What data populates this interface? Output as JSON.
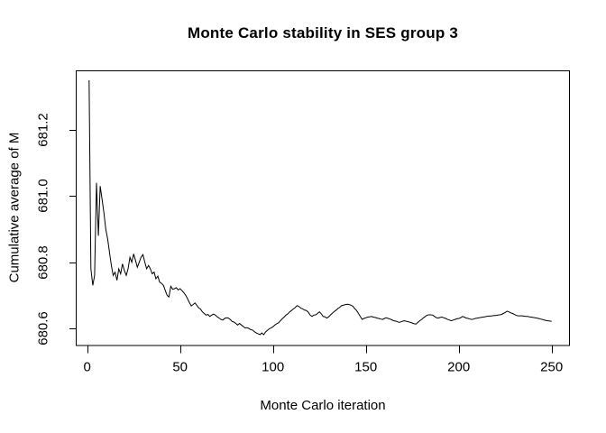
{
  "chart_data": {
    "type": "line",
    "title": "Monte Carlo stability in SES group 3",
    "xlabel": "Monte Carlo iteration",
    "ylabel": "Cumulative average of M",
    "line_color": "#000000",
    "background_color": "#ffffff",
    "grid": false,
    "legend": false,
    "box_around_plot": true,
    "x_ticks": [
      {
        "value": 0,
        "label": "0"
      },
      {
        "value": 50,
        "label": "50"
      },
      {
        "value": 100,
        "label": "100"
      },
      {
        "value": 150,
        "label": "150"
      },
      {
        "value": 200,
        "label": "200"
      },
      {
        "value": 250,
        "label": "250"
      }
    ],
    "y_ticks": [
      {
        "value": 680.6,
        "label": "680.6"
      },
      {
        "value": 680.8,
        "label": "680.8"
      },
      {
        "value": 681.0,
        "label": "681.0"
      },
      {
        "value": 681.2,
        "label": "681.2"
      }
    ],
    "xlim": [
      0,
      250
    ],
    "ylim": [
      680.55,
      681.38
    ],
    "x_start": 1,
    "x_step": 1,
    "n_points": 250,
    "series": [
      {
        "name": "cumulative-average-of-M",
        "values": [
          681.35,
          680.78,
          680.73,
          680.76,
          681.04,
          680.88,
          681.03,
          680.99,
          680.95,
          680.9,
          680.87,
          680.83,
          680.79,
          680.76,
          680.77,
          680.745,
          680.78,
          680.765,
          680.795,
          680.775,
          680.76,
          680.78,
          680.815,
          680.8,
          680.825,
          680.805,
          680.785,
          680.8,
          680.815,
          680.823,
          680.8,
          680.78,
          680.79,
          680.78,
          680.765,
          680.77,
          680.75,
          680.758,
          680.74,
          680.736,
          680.73,
          680.715,
          680.7,
          680.695,
          680.727,
          680.718,
          680.72,
          680.723,
          680.716,
          680.72,
          680.714,
          680.708,
          680.7,
          680.69,
          680.678,
          680.668,
          680.672,
          680.677,
          680.67,
          680.662,
          680.658,
          680.65,
          680.645,
          680.64,
          680.642,
          680.636,
          680.64,
          680.643,
          680.64,
          680.635,
          680.631,
          680.627,
          680.625,
          680.63,
          680.632,
          680.631,
          680.627,
          680.621,
          680.619,
          680.615,
          680.61,
          680.615,
          680.61,
          680.606,
          680.601,
          680.602,
          680.6,
          680.596,
          680.595,
          680.59,
          680.586,
          680.584,
          680.581,
          680.586,
          680.581,
          680.589,
          680.594,
          680.599,
          680.601,
          680.605,
          680.61,
          680.614,
          680.617,
          680.623,
          680.629,
          680.634,
          680.64,
          680.644,
          680.65,
          680.654,
          680.659,
          680.663,
          680.669,
          680.666,
          680.661,
          680.659,
          680.655,
          680.654,
          680.649,
          680.64,
          680.636,
          680.64,
          680.641,
          680.645,
          680.65,
          680.644,
          680.636,
          680.635,
          680.631,
          680.635,
          680.641,
          680.646,
          680.651,
          680.655,
          680.66,
          680.664,
          680.669,
          680.67,
          680.672,
          680.673,
          680.672,
          680.67,
          680.667,
          680.66,
          680.654,
          680.645,
          680.636,
          680.627,
          680.63,
          680.632,
          680.634,
          680.635,
          680.636,
          680.634,
          680.633,
          680.631,
          680.63,
          680.628,
          680.627,
          680.63,
          680.632,
          680.63,
          680.628,
          680.626,
          680.623,
          680.622,
          680.62,
          680.618,
          680.62,
          680.622,
          680.623,
          680.621,
          680.62,
          680.618,
          680.616,
          680.614,
          680.613,
          680.618,
          680.623,
          680.627,
          680.632,
          680.636,
          680.64,
          680.641,
          680.641,
          680.64,
          680.636,
          680.632,
          680.631,
          680.633,
          680.634,
          680.632,
          680.63,
          680.627,
          680.625,
          680.623,
          680.625,
          680.627,
          680.629,
          680.63,
          680.632,
          680.636,
          680.634,
          680.631,
          680.63,
          680.628,
          680.627,
          680.628,
          680.63,
          680.631,
          680.632,
          680.633,
          680.634,
          680.635,
          680.636,
          680.637,
          680.637,
          680.638,
          680.639,
          680.639,
          680.64,
          680.641,
          680.642,
          680.645,
          680.648,
          680.652,
          680.65,
          680.647,
          680.645,
          680.642,
          680.639,
          680.638,
          680.638,
          680.638,
          680.637,
          680.636,
          680.636,
          680.635,
          680.634,
          680.633,
          680.632,
          680.631,
          680.63,
          680.628,
          680.627,
          680.625,
          680.624,
          680.623,
          680.622,
          680.621
        ]
      }
    ]
  }
}
